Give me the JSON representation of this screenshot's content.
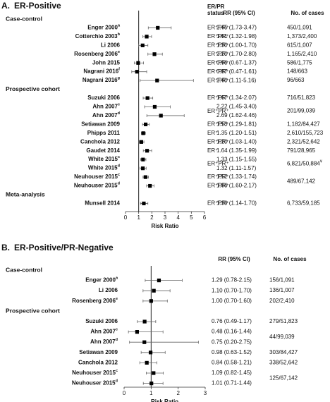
{
  "chart_data": [
    {
      "type": "forest",
      "label": "A.",
      "title": "ER-Positive",
      "status_header": [
        "ER/PR",
        "status"
      ],
      "rr_header": "RR (95% CI)",
      "cases_header": "No. of cases",
      "xlabel": "Risk Ratio",
      "xlim": [
        0,
        6
      ],
      "xticks": [
        0,
        1,
        2,
        3,
        4,
        5,
        6
      ],
      "reference": 1,
      "color": "#000000",
      "groups": [
        {
          "name": "Case-control",
          "studies": [
            {
              "name": "Enger 2000",
              "superscript": "a",
              "status": "ER⁺PR⁺",
              "estimate": 2.45,
              "lower": 1.73,
              "upper": 3.47,
              "value_label": "2.45 (1.73-3.47)",
              "cases": "450/1,091"
            },
            {
              "name": "Cotterchio 2003",
              "superscript": "b",
              "status": "ER⁺PR⁺",
              "estimate": 1.61,
              "lower": 1.32,
              "upper": 1.98,
              "value_label": "1.61 (1.32-1.98)",
              "cases": "1,373/2,400"
            },
            {
              "name": "Li 2006",
              "status": "ER⁺PR⁺",
              "estimate": 1.3,
              "lower": 1.0,
              "upper": 1.7,
              "value_label": "1.30 (1.00-1.70)",
              "cases": "615/1,007"
            },
            {
              "name": "Rosenberg 2006",
              "superscript": "e",
              "status": "ER⁺PR⁺",
              "estimate": 2.2,
              "lower": 1.7,
              "upper": 2.8,
              "value_label": "2.20 (1.70-2.80)",
              "cases": "1,165/2,410"
            },
            {
              "name": "John 2015",
              "status": "ER⁺PR⁺",
              "estimate": 0.96,
              "lower": 0.67,
              "upper": 1.37,
              "value_label": "0.96 (0.67-1.37)",
              "cases": "586/1,775"
            },
            {
              "name": "Nagrani 2016",
              "superscript": "f",
              "status": "ER⁺PR⁺",
              "estimate": 0.87,
              "lower": 0.47,
              "upper": 1.61,
              "value_label": "0.87 (0.47-1.61)",
              "cases": "148/663"
            },
            {
              "name": "Nagrani 2016",
              "superscript": "g",
              "status": "ER⁺PR⁺",
              "estimate": 2.4,
              "lower": 1.11,
              "upper": 5.16,
              "value_label": "2.40 (1.11-5.16)",
              "cases": "96/663"
            }
          ]
        },
        {
          "name": "Prospective cohort",
          "studies": [
            {
              "name": "Suzuki 2006",
              "status": "ER⁺PR⁺",
              "estimate": 1.67,
              "lower": 1.34,
              "upper": 2.07,
              "value_label": "1.67 (1.34-2.07)",
              "cases": "716/51,823"
            },
            {
              "name": "Ahn 2007",
              "superscript": "c",
              "status": "ER⁺PR⁺",
              "estimate": 2.22,
              "lower": 1.45,
              "upper": 3.4,
              "value_label": "2.22 (1.45-3.40)",
              "cases": "201/99,039"
            },
            {
              "name": "Ahn 2007",
              "superscript": "d",
              "status": null,
              "estimate": 2.69,
              "lower": 1.62,
              "upper": 4.46,
              "value_label": "2.69 (1.62-4.46)",
              "cases": null
            },
            {
              "name": "Setiawan 2009",
              "status": "ER⁺PR⁺",
              "estimate": 1.53,
              "lower": 1.29,
              "upper": 1.81,
              "value_label": "1.53 (1.29-1.81)",
              "cases": "1,182/84,427"
            },
            {
              "name": "Phipps 2011",
              "status": "ER⁺",
              "estimate": 1.35,
              "lower": 1.2,
              "upper": 1.51,
              "value_label": "1.35 (1.20-1.51)",
              "cases": "2,610/155,723"
            },
            {
              "name": "Canchola 2012",
              "status": "ER⁺PR⁺",
              "estimate": 1.2,
              "lower": 1.03,
              "upper": 1.4,
              "value_label": "1.20 (1.03-1.40)",
              "cases": "2,321/52,642"
            },
            {
              "name": "Gaudet 2014",
              "status": "ER⁺",
              "estimate": 1.64,
              "lower": 1.35,
              "upper": 1.99,
              "value_label": "1.64 (1.35-1.99)",
              "cases": "791/28,965"
            },
            {
              "name": "White 2015",
              "superscript": "c",
              "status": "ER⁺PR⁺",
              "estimate": 1.33,
              "lower": 1.15,
              "upper": 1.55,
              "value_label": "1.33 (1.15-1.55)",
              "cases": "6,821/50,884",
              "cases_superscript": "¥"
            },
            {
              "name": "White 2015",
              "superscript": "d",
              "status": null,
              "estimate": 1.32,
              "lower": 1.11,
              "upper": 1.57,
              "value_label": "1.32 (1.11-1.57)",
              "cases": null
            },
            {
              "name": "Neuhouser 2015",
              "superscript": "c",
              "status": "ER⁺PR⁺",
              "estimate": 1.52,
              "lower": 1.33,
              "upper": 1.74,
              "value_label": "1.52 (1.33-1.74)",
              "cases": "489/67,142"
            },
            {
              "name": "Neuhouser 2015",
              "superscript": "d",
              "status": "ER⁺PR⁺",
              "estimate": 1.86,
              "lower": 1.6,
              "upper": 2.17,
              "value_label": "1.86 (1.60-2.17)",
              "cases": null
            }
          ]
        },
        {
          "name": "Meta-analysis",
          "studies": [
            {
              "name": "Munsell 2014",
              "status": "ER⁺PR⁺",
              "estimate": 1.39,
              "lower": 1.14,
              "upper": 1.7,
              "value_label": "1.39 (1.14-1.70)",
              "cases": "6,733/59,185"
            }
          ]
        }
      ]
    },
    {
      "type": "forest",
      "label": "B.",
      "title": "ER-Positive/PR-Negative",
      "rr_header": "RR (95% CI)",
      "cases_header": "No. of cases",
      "xlabel": "Risk Ratio",
      "xlim": [
        0,
        3
      ],
      "xticks": [
        0,
        1,
        2,
        3
      ],
      "reference": 1,
      "color": "#000000",
      "groups": [
        {
          "name": "Case-control",
          "studies": [
            {
              "name": "Enger 2000",
              "superscript": "a",
              "estimate": 1.29,
              "lower": 0.78,
              "upper": 2.15,
              "value_label": "1.29 (0.78-2.15)",
              "cases": "156/1,091"
            },
            {
              "name": "Li 2006",
              "estimate": 1.1,
              "lower": 0.7,
              "upper": 1.7,
              "value_label": "1.10 (0.70-1.70)",
              "cases": "136/1,007"
            },
            {
              "name": "Rosenberg 2006",
              "superscript": "e",
              "estimate": 1.0,
              "lower": 0.7,
              "upper": 1.6,
              "value_label": "1.00 (0.70-1.60)",
              "cases": "202/2,410"
            }
          ]
        },
        {
          "name": "Prospective cohort",
          "studies": [
            {
              "name": "Suzuki 2006",
              "estimate": 0.76,
              "lower": 0.49,
              "upper": 1.17,
              "value_label": "0.76 (0.49-1.17)",
              "cases": "279/51,823"
            },
            {
              "name": "Ahn 2007",
              "superscript": "c",
              "estimate": 0.48,
              "lower": 0.16,
              "upper": 1.44,
              "value_label": "0.48 (0.16-1.44)",
              "cases": "44/99,039"
            },
            {
              "name": "Ahn 2007",
              "superscript": "d",
              "estimate": 0.75,
              "lower": 0.2,
              "upper": 2.75,
              "value_label": "0.75 (0.20-2.75)",
              "cases": null
            },
            {
              "name": "Setiawan 2009",
              "estimate": 0.98,
              "lower": 0.63,
              "upper": 1.52,
              "value_label": "0.98 (0.63-1.52)",
              "cases": "303/84,427"
            },
            {
              "name": "Canchola 2012",
              "estimate": 0.84,
              "lower": 0.58,
              "upper": 1.21,
              "value_label": "0.84 (0.58-1.21)",
              "cases": "338/52,642"
            },
            {
              "name": "Neuhouser 2015",
              "superscript": "c",
              "estimate": 1.09,
              "lower": 0.82,
              "upper": 1.45,
              "value_label": "1.09 (0.82-1.45)",
              "cases": "125/67,142"
            },
            {
              "name": "Neuhouser 2015",
              "superscript": "d",
              "estimate": 1.01,
              "lower": 0.71,
              "upper": 1.44,
              "value_label": "1.01 (0.71-1.44)",
              "cases": null
            }
          ]
        }
      ]
    }
  ]
}
